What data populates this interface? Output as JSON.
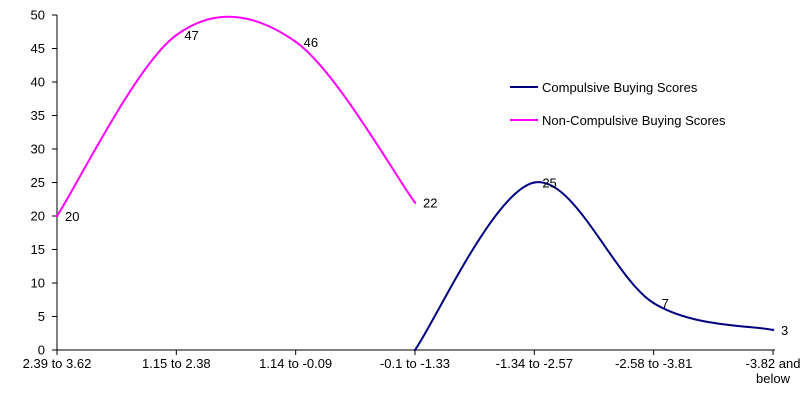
{
  "chart_data": {
    "type": "line",
    "categories": [
      [
        "2.39 to 3.62"
      ],
      [
        "1.15 to 2.38"
      ],
      [
        "1.14 to -0.09"
      ],
      [
        "-0.1 to -1.33"
      ],
      [
        "-1.34 to -2.57"
      ],
      [
        "-2.58 to -3.81"
      ],
      [
        "-3.82 and",
        "below"
      ]
    ],
    "ylim": [
      0,
      50
    ],
    "yticks": [
      0,
      5,
      10,
      15,
      20,
      25,
      30,
      35,
      40,
      45,
      50
    ],
    "grid": false,
    "legend_position": "right",
    "series": [
      {
        "name": "Compulsive Buying Scores",
        "color": "#000080",
        "values": [
          null,
          null,
          null,
          0,
          25,
          7,
          3
        ],
        "labels": [
          "",
          "",
          "",
          "",
          "25",
          "7",
          "3"
        ]
      },
      {
        "name": "Non-Compulsive Buying Scores",
        "color": "#ff00ff",
        "values": [
          20,
          47,
          46,
          22,
          null,
          null,
          null
        ],
        "labels": [
          "20",
          "47",
          "46",
          "22",
          "",
          "",
          ""
        ]
      }
    ]
  }
}
